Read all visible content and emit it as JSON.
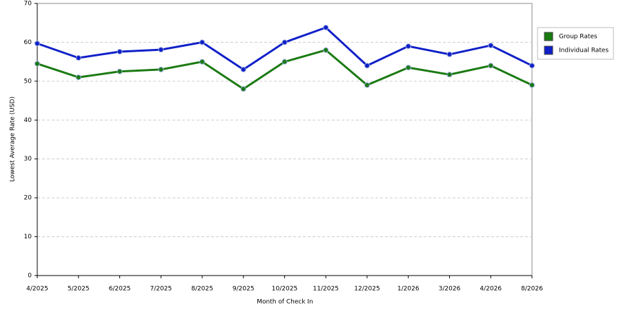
{
  "chart_data": {
    "type": "line",
    "xlabel": "Month of Check In",
    "ylabel": "Lowest Average Rate (USD)",
    "categories": [
      "4/2025",
      "5/2025",
      "6/2025",
      "7/2025",
      "8/2025",
      "9/2025",
      "10/2025",
      "11/2025",
      "12/2025",
      "1/2026",
      "3/2026",
      "4/2026",
      "8/2026"
    ],
    "series": [
      {
        "name": "Group Rates",
        "color": "#1a7a12",
        "values": [
          54.5,
          51,
          52.5,
          53,
          55,
          48,
          55,
          58,
          49,
          53.5,
          51.7,
          54,
          49
        ]
      },
      {
        "name": "Individual Rates",
        "color": "#1020c8",
        "values": [
          59.7,
          56,
          57.6,
          58.1,
          60,
          53,
          60,
          63.8,
          54,
          59,
          56.9,
          59.2,
          54
        ]
      }
    ],
    "ylim": [
      0,
      70
    ],
    "yticks": [
      0,
      10,
      20,
      30,
      40,
      50,
      60,
      70
    ],
    "grid": true,
    "legend": "right"
  }
}
